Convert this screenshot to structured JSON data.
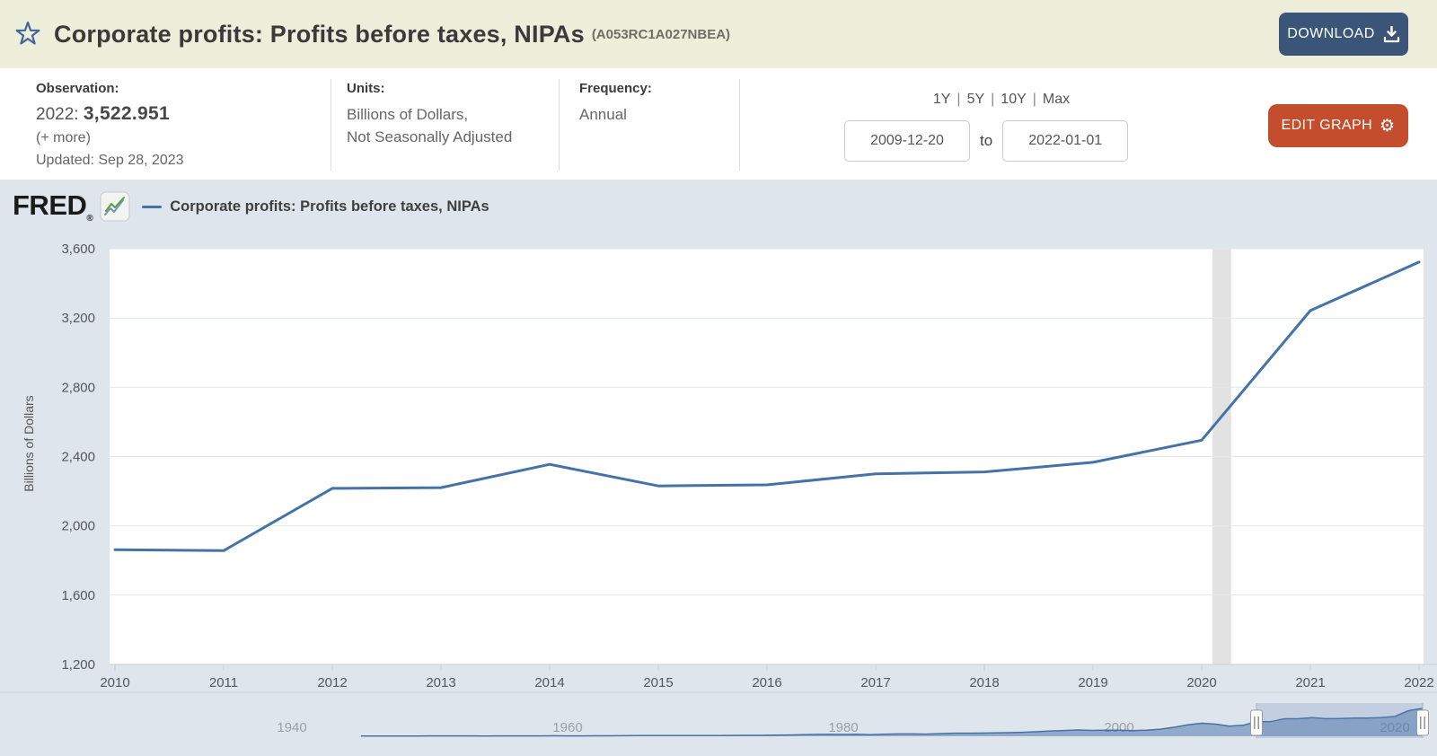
{
  "header": {
    "title": "Corporate profits: Profits before taxes, NIPAs",
    "series_id": "(A053RC1A027NBEA)",
    "download_label": "DOWNLOAD"
  },
  "info": {
    "observation_label": "Observation:",
    "observation_date": "2022:",
    "observation_value": "3,522.951",
    "more_label": "(+ more)",
    "updated": "Updated: Sep 28, 2023",
    "units_label": "Units:",
    "units_line1": "Billions of Dollars,",
    "units_line2": "Not Seasonally Adjusted",
    "frequency_label": "Frequency:",
    "frequency_value": "Annual",
    "ranges": [
      "1Y",
      "5Y",
      "10Y",
      "Max"
    ],
    "range_separator": "|",
    "date_start": "2009-12-20",
    "date_to_label": "to",
    "date_end": "2022-01-01",
    "edit_graph_label": "EDIT GRAPH",
    "gear_glyph": "⚙"
  },
  "graph_header": {
    "brand": "FRED",
    "registered_mark": "®",
    "legend_label": "Corporate profits: Profits before taxes, NIPAs"
  },
  "chart_data": {
    "type": "line",
    "title": "Corporate profits: Profits before taxes, NIPAs",
    "ylabel": "Billions of Dollars",
    "color": "#4572a7",
    "recession_color": "#e2e2e2",
    "grid": true,
    "ylim": [
      1200,
      3600
    ],
    "ytick_step": 400,
    "xticks": [
      2010,
      2011,
      2012,
      2013,
      2014,
      2015,
      2016,
      2017,
      2018,
      2019,
      2020,
      2021,
      2022
    ],
    "x": [
      2010,
      2011,
      2012,
      2013,
      2014,
      2015,
      2016,
      2017,
      2018,
      2019,
      2020,
      2021,
      2022
    ],
    "values": [
      1861.7,
      1856.7,
      2216.5,
      2220.6,
      2355.1,
      2230.7,
      2236.7,
      2300.5,
      2311.6,
      2366.9,
      2494.6,
      3243.0,
      3522.951
    ],
    "recession_band_x": [
      2020.1,
      2020.27
    ]
  },
  "mini_chart": {
    "type": "area",
    "decade_label_years": [
      1940,
      1960,
      1980,
      2000,
      2020
    ],
    "decade_labels": [
      "1940",
      "1960",
      "1980",
      "2000",
      "2020"
    ],
    "selection_years": [
      2009.97,
      2022.02
    ],
    "x": [
      1945,
      1946,
      1947,
      1948,
      1949,
      1950,
      1951,
      1952,
      1953,
      1954,
      1955,
      1956,
      1957,
      1958,
      1959,
      1960,
      1961,
      1962,
      1963,
      1964,
      1965,
      1966,
      1967,
      1968,
      1969,
      1970,
      1971,
      1972,
      1973,
      1974,
      1975,
      1976,
      1977,
      1978,
      1979,
      1980,
      1981,
      1982,
      1983,
      1984,
      1985,
      1986,
      1987,
      1988,
      1989,
      1990,
      1991,
      1992,
      1993,
      1994,
      1995,
      1996,
      1997,
      1998,
      1999,
      2000,
      2001,
      2002,
      2003,
      2004,
      2005,
      2006,
      2007,
      2008,
      2009,
      2010,
      2011,
      2012,
      2013,
      2014,
      2015,
      2016,
      2017,
      2018,
      2019,
      2020,
      2021,
      2022
    ],
    "values": [
      19,
      24,
      30,
      35,
      31,
      43,
      44,
      40,
      41,
      38,
      49,
      49,
      48,
      42,
      53,
      51,
      51,
      57,
      62,
      69,
      79,
      84,
      81,
      89,
      87,
      76,
      88,
      102,
      116,
      110,
      134,
      164,
      192,
      222,
      237,
      223,
      239,
      210,
      254,
      293,
      291,
      278,
      324,
      383,
      388,
      397,
      419,
      451,
      498,
      570,
      669,
      729,
      795,
      740,
      776,
      764,
      716,
      768,
      901,
      1134,
      1440,
      1647,
      1529,
      1285,
      1392,
      1862,
      1857,
      2217,
      2221,
      2355,
      2231,
      2237,
      2301,
      2312,
      2367,
      2495,
      3243,
      3523
    ]
  },
  "colors": {
    "header_bg": "#eeefdb",
    "panel_bg": "#dee5ed",
    "download_button": "#3b5578",
    "edit_button": "#c44d2d",
    "series_line": "#4572a7",
    "recession_band": "#e2e2e2"
  }
}
